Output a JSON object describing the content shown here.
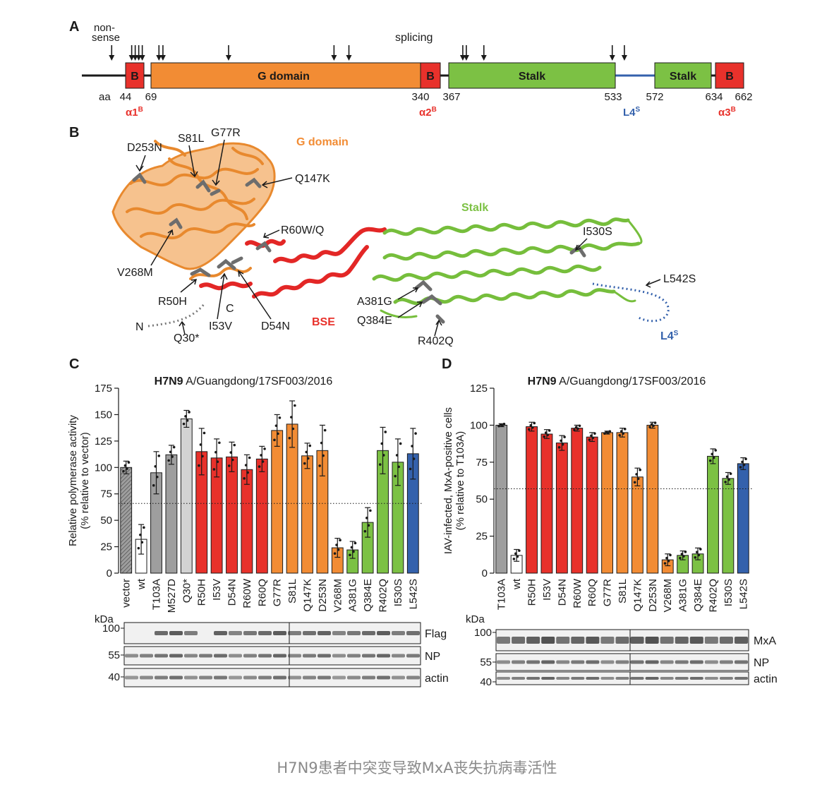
{
  "caption": "H7N9患者中突变导致MxA丧失抗病毒活性",
  "colors": {
    "red": "#e8312b",
    "orange": "#f28c34",
    "green": "#7cc144",
    "blue": "#3461ac",
    "grey": "#9e9e9e",
    "lightgrey": "#d3d3d3",
    "dark": "#1a1a1a"
  },
  "panel_a": {
    "letter": "A",
    "nonsense_label": [
      "non-",
      "sense"
    ],
    "splicing_label": "splicing",
    "domains": [
      {
        "label": "B",
        "start": 44,
        "end": 69,
        "color": "#e8312b"
      },
      {
        "label": "G domain",
        "start": 69,
        "end": 340,
        "color": "#f28c34"
      },
      {
        "label": "B",
        "start": 340,
        "end": 367,
        "color": "#e8312b"
      },
      {
        "label": "Stalk",
        "start": 367,
        "end": 533,
        "color": "#7cc144"
      },
      {
        "label": "Stalk",
        "start": 572,
        "end": 634,
        "color": "#7cc144"
      },
      {
        "label": "B",
        "start": 634,
        "end": 662,
        "color": "#e8312b"
      }
    ],
    "aa_label": "aa",
    "positions": [
      "44",
      "69",
      "340",
      "367",
      "533",
      "572",
      "634",
      "662"
    ],
    "helix_labels": [
      {
        "text": "α1",
        "sup": "B",
        "color": "#e8312b"
      },
      {
        "text": "α2",
        "sup": "B",
        "color": "#e8312b"
      },
      {
        "text": "L4",
        "sup": "S",
        "color": "#3461ac"
      },
      {
        "text": "α3",
        "sup": "B",
        "color": "#e8312b"
      }
    ],
    "mutation_positions": [
      30,
      50,
      53,
      54,
      60,
      77,
      81,
      147,
      253,
      268,
      381,
      384,
      402,
      530,
      542
    ]
  },
  "panel_b": {
    "letter": "B",
    "g_domain_label": "G domain",
    "stalk_label": "Stalk",
    "bse_label": "BSE",
    "l4_label": "L4",
    "l4_sup": "S",
    "n_label": "N",
    "c_label": "C",
    "mutations": [
      "D253N",
      "S81L",
      "G77R",
      "Q147K",
      "R60W/Q",
      "V268M",
      "R50H",
      "I53V",
      "D54N",
      "Q30*",
      "I530S",
      "L542S",
      "A381G",
      "Q384E",
      "R402Q"
    ]
  },
  "panel_c": {
    "letter": "C",
    "title_bold": "H7N9",
    "title_rest": " A/Guangdong/17SF003/2016",
    "blot_labels": [
      "Flag",
      "NP",
      "actin"
    ],
    "kda_label": "kDa",
    "kda_marks": [
      "100",
      "55",
      "40"
    ]
  },
  "panel_d": {
    "letter": "D",
    "title_bold": "H7N9",
    "title_rest": " A/Guangdong/17SF003/2016",
    "blot_labels": [
      "MxA",
      "NP",
      "actin"
    ],
    "kda_label": "kDa",
    "kda_marks": [
      "100",
      "55",
      "40"
    ]
  },
  "chart_data": [
    {
      "type": "bar",
      "title": "H7N9 A/Guangdong/17SF003/2016",
      "ylabel": [
        "Relative polymerase activity",
        "(% relative to vector)"
      ],
      "ylim": [
        0,
        175
      ],
      "yticks": [
        0,
        25,
        50,
        75,
        100,
        125,
        150,
        175
      ],
      "reference_line": 66,
      "categories": [
        "vector",
        "wt",
        "T103A",
        "M527D",
        "Q30*",
        "R50H",
        "I53V",
        "D54N",
        "R60W",
        "R60Q",
        "G77R",
        "S81L",
        "Q147K",
        "D253N",
        "V268M",
        "A381G",
        "Q384E",
        "R402Q",
        "I530S",
        "L542S"
      ],
      "values": [
        100,
        32,
        95,
        112,
        146,
        115,
        109,
        110,
        98,
        108,
        135,
        141,
        111,
        116,
        24,
        22,
        48,
        116,
        105,
        113
      ],
      "errors": [
        6,
        14,
        20,
        9,
        8,
        22,
        18,
        14,
        14,
        12,
        15,
        22,
        12,
        24,
        9,
        8,
        14,
        22,
        22,
        24
      ],
      "colors": [
        "#9e9e9e",
        "#ffffff",
        "#9e9e9e",
        "#9e9e9e",
        "#d3d3d3",
        "#e8312b",
        "#e8312b",
        "#e8312b",
        "#e8312b",
        "#e8312b",
        "#f28c34",
        "#f28c34",
        "#f28c34",
        "#f28c34",
        "#f28c34",
        "#7cc144",
        "#7cc144",
        "#7cc144",
        "#7cc144",
        "#3461ac"
      ],
      "hatched": [
        true,
        false,
        false,
        false,
        false,
        false,
        false,
        false,
        false,
        false,
        false,
        false,
        false,
        false,
        false,
        false,
        false,
        false,
        false,
        false
      ]
    },
    {
      "type": "bar",
      "title": "H7N9 A/Guangdong/17SF003/2016",
      "ylabel": [
        "IAV-infected, MxA-positive cells",
        "(% relative to T103A)"
      ],
      "ylim": [
        0,
        125
      ],
      "yticks": [
        0,
        25,
        50,
        75,
        100,
        125
      ],
      "reference_line": 57,
      "categories": [
        "T103A",
        "wt",
        "R50H",
        "I53V",
        "D54N",
        "R60W",
        "R60Q",
        "G77R",
        "S81L",
        "Q147K",
        "D253N",
        "V268M",
        "A381G",
        "Q384E",
        "R402Q",
        "I530S",
        "L542S"
      ],
      "values": [
        100,
        12,
        99,
        94,
        88,
        98,
        92,
        95,
        95,
        65,
        100,
        9,
        12,
        13,
        79,
        64,
        74
      ],
      "errors": [
        1,
        4,
        3,
        3,
        5,
        2,
        3,
        1,
        3,
        6,
        2,
        4,
        3,
        4,
        5,
        4,
        4
      ],
      "colors": [
        "#9e9e9e",
        "#ffffff",
        "#e8312b",
        "#e8312b",
        "#e8312b",
        "#e8312b",
        "#e8312b",
        "#f28c34",
        "#f28c34",
        "#f28c34",
        "#f28c34",
        "#f28c34",
        "#7cc144",
        "#7cc144",
        "#7cc144",
        "#7cc144",
        "#3461ac"
      ],
      "hatched": [
        false,
        false,
        false,
        false,
        false,
        false,
        false,
        false,
        false,
        false,
        false,
        false,
        false,
        false,
        false,
        false,
        false
      ]
    }
  ]
}
